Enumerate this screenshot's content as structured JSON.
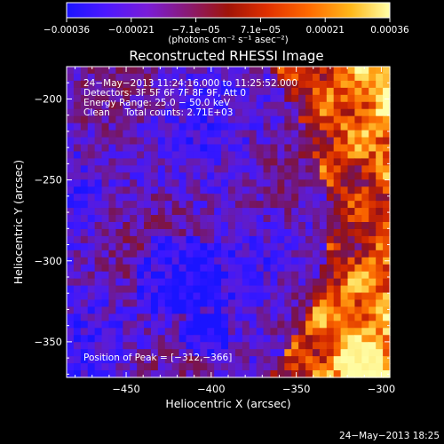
{
  "chart_data": {
    "type": "heatmap",
    "title": "Reconstructed RHESSI Image",
    "xlabel": "Heliocentric X (arcsec)",
    "ylabel": "Heliocentric Y (arcsec)",
    "xlim": [
      -485,
      -295
    ],
    "ylim": [
      -372,
      -180
    ],
    "x_ticks": [
      -450,
      -400,
      -350,
      -300
    ],
    "y_ticks": [
      -350,
      -300,
      -250,
      -200
    ],
    "x_tick_labels": [
      "−450",
      "−400",
      "−350",
      "−300"
    ],
    "y_tick_labels": [
      "−350",
      "−300",
      "−250",
      "−200"
    ],
    "colorbar": {
      "range": [
        -0.00036,
        0.00036
      ],
      "tick_labels": [
        "−0.00036",
        "−0.00021",
        "−7.1e−05",
        "7.1e−05",
        "0.00021",
        "0.00036"
      ],
      "unit_label": "(photons cm⁻² s⁻¹ asec⁻²)",
      "colors": [
        "#1a14ff",
        "#4c18ff",
        "#7a1cd8",
        "#8a1a70",
        "#a01408",
        "#e03000",
        "#ff6a00",
        "#ffb81a",
        "#ffffa8"
      ]
    },
    "annotations": [
      "24−May−2013 11:24:16.000 to 11:25:52.000",
      "Detectors: 3F 5F 6F 7F 8F 9F, Att 0",
      "Energy Range: 25.0 − 50.0 keV",
      "Clean     Total counts: 2.71E+03"
    ],
    "peak_label": "Position of Peak = [−312,−366]",
    "peak_position": [
      -312,
      -366
    ],
    "date_stamp": "24−May−2013 18:25",
    "grid": false
  }
}
